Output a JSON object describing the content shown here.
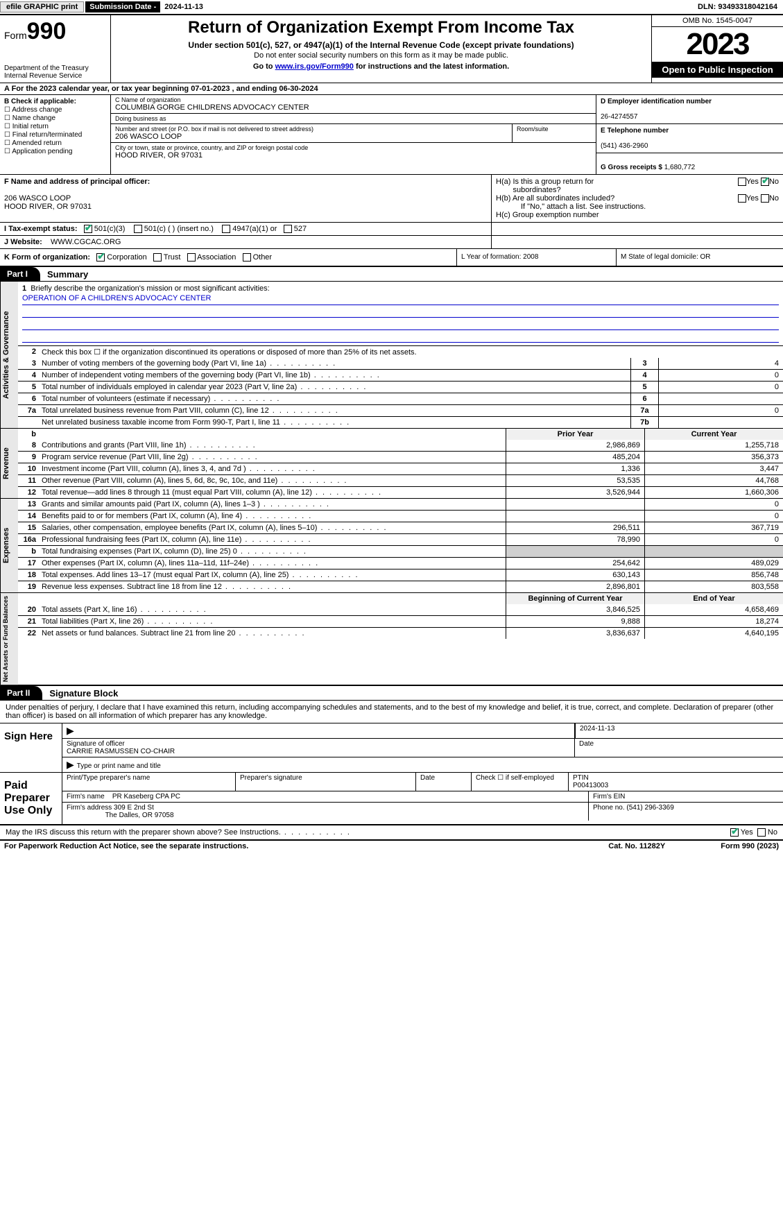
{
  "toolbar": {
    "efile": "efile GRAPHIC print",
    "sub_lbl": "Submission Date -",
    "sub_val": "2024-11-13",
    "dln_lbl": "DLN:",
    "dln_val": "93493318042164"
  },
  "header": {
    "form_prefix": "Form",
    "form_num": "990",
    "dept": "Department of the Treasury\nInternal Revenue Service",
    "title": "Return of Organization Exempt From Income Tax",
    "sub1": "Under section 501(c), 527, or 4947(a)(1) of the Internal Revenue Code (except private foundations)",
    "sub2": "Do not enter social security numbers on this form as it may be made public.",
    "sub3_pre": "Go to ",
    "sub3_link": "www.irs.gov/Form990",
    "sub3_post": " for instructions and the latest information.",
    "omb": "OMB No. 1545-0047",
    "year": "2023",
    "open": "Open to Public Inspection"
  },
  "row_a": "A For the 2023 calendar year, or tax year beginning 07-01-2023   , and ending 06-30-2024",
  "box_b": {
    "hdr": "B Check if applicable:",
    "opts": [
      "Address change",
      "Name change",
      "Initial return",
      "Final return/terminated",
      "Amended return",
      "Application pending"
    ]
  },
  "box_c": {
    "name_lbl": "C Name of organization",
    "name": "COLUMBIA GORGE CHILDRENS ADVOCACY CENTER",
    "dba_lbl": "Doing business as",
    "dba": "",
    "addr_lbl": "Number and street (or P.O. box if mail is not delivered to street address)",
    "room_lbl": "Room/suite",
    "addr": "206 WASCO LOOP",
    "city_lbl": "City or town, state or province, country, and ZIP or foreign postal code",
    "city": "HOOD RIVER, OR   97031"
  },
  "box_d": {
    "ein_lbl": "D Employer identification number",
    "ein": "26-4274557",
    "tel_lbl": "E Telephone number",
    "tel": "(541) 436-2960",
    "gross_lbl": "G Gross receipts $",
    "gross": "1,680,772"
  },
  "box_f": {
    "lbl": "F  Name and address of principal officer:",
    "line1": "206 WASCO LOOP",
    "line2": "HOOD RIVER, OR  97031"
  },
  "box_h": {
    "a": "H(a)  Is this a group return for",
    "a2": "subordinates?",
    "b": "H(b)  Are all subordinates included?",
    "note": "If \"No,\" attach a list. See instructions.",
    "c": "H(c)  Group exemption number"
  },
  "row_i": {
    "lbl": "I   Tax-exempt status:",
    "o1": "501(c)(3)",
    "o2": "501(c) (  ) (insert no.)",
    "o3": "4947(a)(1) or",
    "o4": "527"
  },
  "row_j": {
    "lbl": "J   Website:",
    "val": "WWW.CGCAC.ORG"
  },
  "row_k": {
    "lbl": "K Form of organization:",
    "o1": "Corporation",
    "o2": "Trust",
    "o3": "Association",
    "o4": "Other",
    "l": "L Year of formation: 2008",
    "m": "M State of legal domicile: OR"
  },
  "part1": {
    "tag": "Part I",
    "title": "Summary"
  },
  "gov": {
    "label": "Activities & Governance",
    "l1": "Briefly describe the organization's mission or most significant activities:",
    "mission": "OPERATION OF A CHILDREN'S ADVOCACY CENTER",
    "l2": "Check this box ☐  if the organization discontinued its operations or disposed of more than 25% of its net assets.",
    "lines": [
      {
        "n": "3",
        "t": "Number of voting members of the governing body (Part VI, line 1a)",
        "box": "3",
        "v": "4"
      },
      {
        "n": "4",
        "t": "Number of independent voting members of the governing body (Part VI, line 1b)",
        "box": "4",
        "v": "0"
      },
      {
        "n": "5",
        "t": "Total number of individuals employed in calendar year 2023 (Part V, line 2a)",
        "box": "5",
        "v": "0"
      },
      {
        "n": "6",
        "t": "Total number of volunteers (estimate if necessary)",
        "box": "6",
        "v": ""
      },
      {
        "n": "7a",
        "t": "Total unrelated business revenue from Part VIII, column (C), line 12",
        "box": "7a",
        "v": "0"
      },
      {
        "n": "",
        "t": "Net unrelated business taxable income from Form 990-T, Part I, line 11",
        "box": "7b",
        "v": ""
      }
    ]
  },
  "rev": {
    "label": "Revenue",
    "hdr_b": "b",
    "hdr_p": "Prior Year",
    "hdr_c": "Current Year",
    "lines": [
      {
        "n": "8",
        "t": "Contributions and grants (Part VIII, line 1h)",
        "p": "2,986,869",
        "c": "1,255,718"
      },
      {
        "n": "9",
        "t": "Program service revenue (Part VIII, line 2g)",
        "p": "485,204",
        "c": "356,373"
      },
      {
        "n": "10",
        "t": "Investment income (Part VIII, column (A), lines 3, 4, and 7d )",
        "p": "1,336",
        "c": "3,447"
      },
      {
        "n": "11",
        "t": "Other revenue (Part VIII, column (A), lines 5, 6d, 8c, 9c, 10c, and 11e)",
        "p": "53,535",
        "c": "44,768"
      },
      {
        "n": "12",
        "t": "Total revenue—add lines 8 through 11 (must equal Part VIII, column (A), line 12)",
        "p": "3,526,944",
        "c": "1,660,306"
      }
    ]
  },
  "exp": {
    "label": "Expenses",
    "lines": [
      {
        "n": "13",
        "t": "Grants and similar amounts paid (Part IX, column (A), lines 1–3 )",
        "p": "",
        "c": "0"
      },
      {
        "n": "14",
        "t": "Benefits paid to or for members (Part IX, column (A), line 4)",
        "p": "",
        "c": "0"
      },
      {
        "n": "15",
        "t": "Salaries, other compensation, employee benefits (Part IX, column (A), lines 5–10)",
        "p": "296,511",
        "c": "367,719"
      },
      {
        "n": "16a",
        "t": "Professional fundraising fees (Part IX, column (A), line 11e)",
        "p": "78,990",
        "c": "0"
      },
      {
        "n": "b",
        "t": "Total fundraising expenses (Part IX, column (D), line 25) 0",
        "p": "GREY",
        "c": "GREY"
      },
      {
        "n": "17",
        "t": "Other expenses (Part IX, column (A), lines 11a–11d, 11f–24e)",
        "p": "254,642",
        "c": "489,029"
      },
      {
        "n": "18",
        "t": "Total expenses. Add lines 13–17 (must equal Part IX, column (A), line 25)",
        "p": "630,143",
        "c": "856,748"
      },
      {
        "n": "19",
        "t": "Revenue less expenses. Subtract line 18 from line 12",
        "p": "2,896,801",
        "c": "803,558"
      }
    ]
  },
  "net": {
    "label": "Net Assets or Fund Balances",
    "hdr_p": "Beginning of Current Year",
    "hdr_c": "End of Year",
    "lines": [
      {
        "n": "20",
        "t": "Total assets (Part X, line 16)",
        "p": "3,846,525",
        "c": "4,658,469"
      },
      {
        "n": "21",
        "t": "Total liabilities (Part X, line 26)",
        "p": "9,888",
        "c": "18,274"
      },
      {
        "n": "22",
        "t": "Net assets or fund balances. Subtract line 21 from line 20",
        "p": "3,836,637",
        "c": "4,640,195"
      }
    ]
  },
  "part2": {
    "tag": "Part II",
    "title": "Signature Block"
  },
  "sig_intro": "Under penalties of perjury, I declare that I have examined this return, including accompanying schedules and statements, and to the best of my knowledge and belief, it is true, correct, and complete. Declaration of preparer (other than officer) is based on all information of which preparer has any knowledge.",
  "sign_here": {
    "lbl": "Sign Here",
    "date": "2024-11-13",
    "sig_lbl": "Signature of officer",
    "name": "CARRIE RASMUSSEN  CO-CHAIR",
    "name_lbl": "Type or print name and title",
    "date_lbl": "Date"
  },
  "paid": {
    "lbl": "Paid Preparer Use Only",
    "c1": "Print/Type preparer's name",
    "c2": "Preparer's signature",
    "c3": "Date",
    "c4_pre": "Check ☐ if self-employed",
    "c5_lbl": "PTIN",
    "c5": "P00413003",
    "firm_lbl": "Firm's name",
    "firm": "PR Kaseberg CPA PC",
    "ein_lbl": "Firm's EIN",
    "addr_lbl": "Firm's address",
    "addr1": "309 E 2nd St",
    "addr2": "The Dalles, OR   97058",
    "phone_lbl": "Phone no.",
    "phone": "(541) 296-3369"
  },
  "discuss": "May the IRS discuss this return with the preparer shown above? See Instructions.",
  "footer": {
    "l": "For Paperwork Reduction Act Notice, see the separate instructions.",
    "c": "Cat. No. 11282Y",
    "r": "Form 990 (2023)"
  }
}
